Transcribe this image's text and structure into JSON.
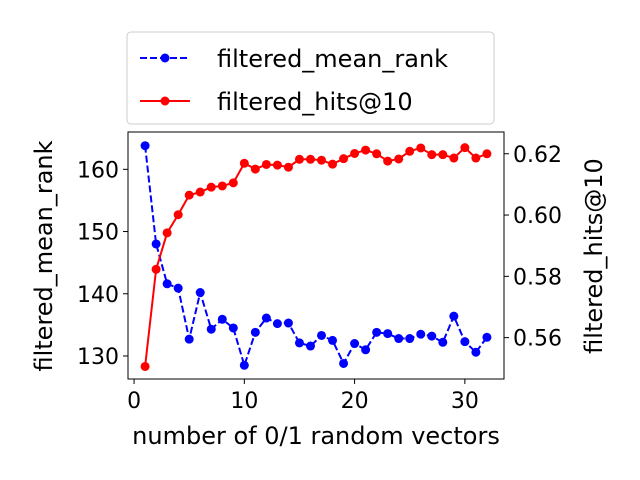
{
  "chart_data": {
    "type": "line",
    "xlabel": "number of 0/1 random vectors",
    "ylabel_left": "filtered_mean_rank",
    "ylabel_right": "filtered_hits@10",
    "xlim": [
      -0.55,
      33.55
    ],
    "ylim_left": [
      126.3,
      166.0
    ],
    "ylim_right": [
      0.5465,
      0.6271
    ],
    "x_ticks": [
      0,
      10,
      20,
      30
    ],
    "y_ticks_left": [
      130,
      140,
      150,
      160
    ],
    "y_ticks_right": [
      0.56,
      0.58,
      0.6,
      0.62
    ],
    "y_tick_labels_right": [
      "0.56",
      "0.58",
      "0.60",
      "0.62"
    ],
    "legend_position": "above",
    "x": [
      1,
      2,
      3,
      4,
      5,
      6,
      7,
      8,
      9,
      10,
      11,
      12,
      13,
      14,
      15,
      16,
      17,
      18,
      19,
      20,
      21,
      22,
      23,
      24,
      25,
      26,
      27,
      28,
      29,
      30,
      31,
      32
    ],
    "series": [
      {
        "name": "filtered_mean_rank",
        "axis": "left",
        "color": "#0000ff",
        "line_style": "dashed",
        "values": [
          163.8,
          148.0,
          141.6,
          140.9,
          132.7,
          140.2,
          134.3,
          135.9,
          134.5,
          128.5,
          133.8,
          136.1,
          135.2,
          135.3,
          132.1,
          131.6,
          133.3,
          132.5,
          128.8,
          132.0,
          131.0,
          133.8,
          133.6,
          132.8,
          132.8,
          133.5,
          133.2,
          132.2,
          136.4,
          132.3,
          130.6,
          133.0
        ]
      },
      {
        "name": "filtered_hits@10",
        "axis": "right",
        "color": "#ff0000",
        "line_style": "solid",
        "values": [
          0.5506,
          0.5823,
          0.5942,
          0.6001,
          0.6065,
          0.6075,
          0.6091,
          0.6095,
          0.6105,
          0.6169,
          0.615,
          0.6165,
          0.6163,
          0.6156,
          0.6182,
          0.6182,
          0.6179,
          0.6166,
          0.6184,
          0.6201,
          0.6212,
          0.62,
          0.6176,
          0.6183,
          0.6208,
          0.6219,
          0.6197,
          0.6197,
          0.6186,
          0.622,
          0.6186,
          0.62
        ]
      }
    ]
  }
}
